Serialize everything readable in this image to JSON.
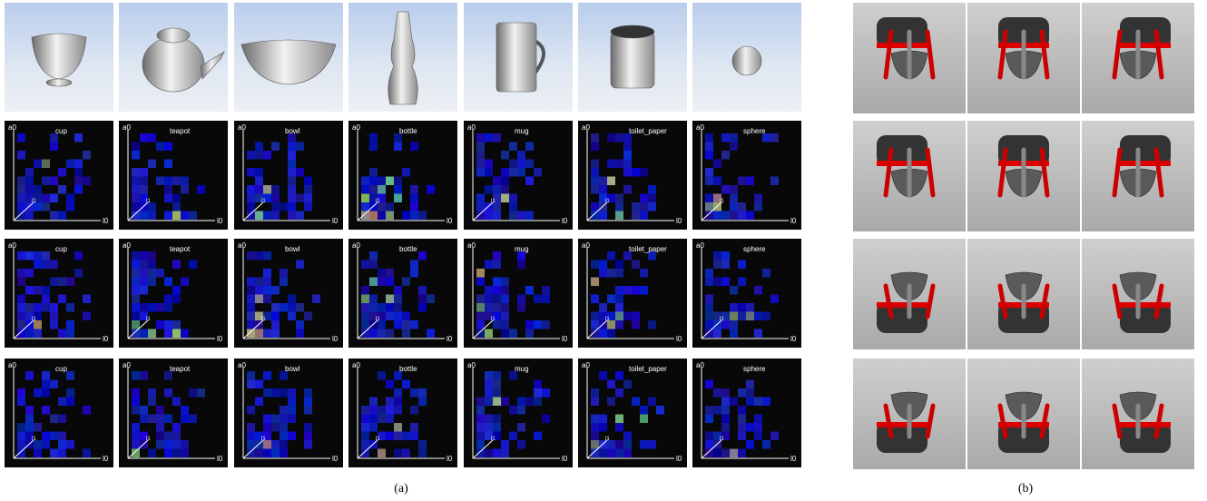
{
  "panel_a": {
    "objects": [
      "cup",
      "teapot",
      "bowl",
      "bottle",
      "mug",
      "toilet_paper",
      "sphere"
    ],
    "axis_labels": {
      "vertical": "a0",
      "horizontal": "l0",
      "diagonal": "l1"
    },
    "caption": "(a)"
  },
  "panel_b": {
    "caption": "(b)"
  }
}
